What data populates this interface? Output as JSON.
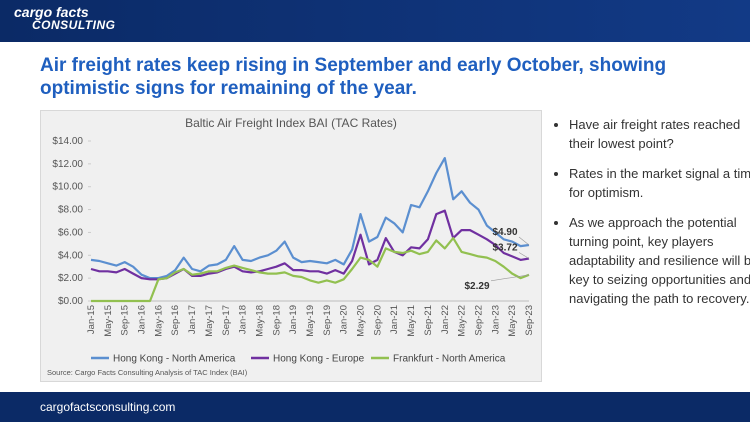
{
  "header": {
    "logo_top": "cargo facts",
    "logo_bottom": "CONSULTING"
  },
  "title": "Air freight rates keep rising in September and early October, showing optimistic signs for remaining of the year.",
  "bullets": [
    "Have air freight rates reached their lowest point?",
    "Rates in the market signal a time for optimism.",
    "As we approach the potential turning point, key players adaptability and resilience will be key to seizing opportunities and navigating the path to recovery."
  ],
  "footer": "cargofactsconsulting.com",
  "chart_data": {
    "type": "line",
    "title": "Baltic Air Freight Index BAI (TAC Rates)",
    "source": "Source: Cargo Facts Consulting Analysis of TAC Index (BAI)",
    "categories": [
      "Jan-15",
      null,
      "May-15",
      null,
      "Sep-15",
      null,
      "Jan-16",
      null,
      "May-16",
      null,
      "Sep-16",
      null,
      "Jan-17",
      null,
      "May-17",
      null,
      "Sep-17",
      null,
      "Jan-18",
      null,
      "May-18",
      null,
      "Sep-18",
      null,
      "Jan-19",
      null,
      "May-19",
      null,
      "Sep-19",
      null,
      "Jan-20",
      null,
      "May-20",
      null,
      "Sep-20",
      null,
      "Jan-21",
      null,
      "May-21",
      null,
      "Sep-21",
      null,
      "Jan-22",
      null,
      "May-22",
      null,
      "Sep-22",
      null,
      "Jan-23",
      null,
      "May-23",
      null,
      "Sep-23"
    ],
    "series": [
      {
        "name": "Hong Kong - North America",
        "color": "#5b8fd0",
        "values": [
          3.6,
          3.5,
          3.3,
          3.1,
          3.4,
          3.0,
          2.3,
          2.0,
          2.0,
          2.2,
          2.7,
          3.8,
          2.8,
          2.6,
          3.1,
          3.2,
          3.6,
          4.8,
          3.6,
          3.5,
          3.8,
          4.0,
          4.4,
          5.2,
          3.8,
          3.4,
          3.5,
          3.4,
          3.3,
          3.6,
          3.2,
          4.5,
          7.6,
          5.2,
          5.6,
          7.3,
          6.8,
          6.0,
          8.4,
          8.2,
          9.6,
          11.2,
          12.5,
          8.9,
          9.6,
          8.6,
          8.0,
          6.6,
          6.0,
          5.4,
          5.2,
          4.8,
          4.9
        ]
      },
      {
        "name": "Hong Kong - Europe",
        "color": "#7030a0",
        "values": [
          2.8,
          2.6,
          2.6,
          2.5,
          2.8,
          2.4,
          2.0,
          1.9,
          1.9,
          2.0,
          2.4,
          2.8,
          2.2,
          2.2,
          2.4,
          2.5,
          2.8,
          3.0,
          2.6,
          2.5,
          2.6,
          2.8,
          3.0,
          3.3,
          2.7,
          2.7,
          2.6,
          2.6,
          2.4,
          2.7,
          2.4,
          3.5,
          5.8,
          3.2,
          3.6,
          5.5,
          4.3,
          4.0,
          4.7,
          4.6,
          5.4,
          7.6,
          7.9,
          5.5,
          6.2,
          6.2,
          5.8,
          5.4,
          4.9,
          4.2,
          3.9,
          3.6,
          3.72
        ]
      },
      {
        "name": "Frankfurt - North America",
        "color": "#92c050",
        "values": [
          0,
          0,
          0,
          0,
          0,
          0,
          0,
          0,
          1.9,
          2.0,
          2.5,
          2.8,
          2.3,
          2.4,
          2.6,
          2.6,
          2.9,
          3.1,
          2.9,
          2.7,
          2.5,
          2.4,
          2.4,
          2.5,
          2.2,
          2.1,
          1.8,
          1.6,
          1.8,
          1.6,
          1.9,
          2.8,
          3.8,
          3.6,
          3.0,
          4.6,
          4.3,
          4.2,
          4.4,
          4.1,
          4.3,
          5.3,
          4.6,
          5.5,
          4.3,
          4.1,
          3.9,
          3.8,
          3.5,
          3.0,
          2.4,
          2.0,
          2.29
        ]
      }
    ],
    "annotations": [
      "$4.90",
      "$3.72",
      "$2.29"
    ],
    "ylim": [
      0,
      14
    ],
    "yticks": [
      {
        "value": 0,
        "label": "$0.00"
      },
      {
        "value": 2,
        "label": "$2.00"
      },
      {
        "value": 4,
        "label": "$4.00"
      },
      {
        "value": 6,
        "label": "$6.00"
      },
      {
        "value": 8,
        "label": "$8.00"
      },
      {
        "value": 10,
        "label": "$10.00"
      },
      {
        "value": 12,
        "label": "$12.00"
      },
      {
        "value": 14,
        "label": "$14.00"
      }
    ],
    "grid": false,
    "legend": "bottom"
  }
}
